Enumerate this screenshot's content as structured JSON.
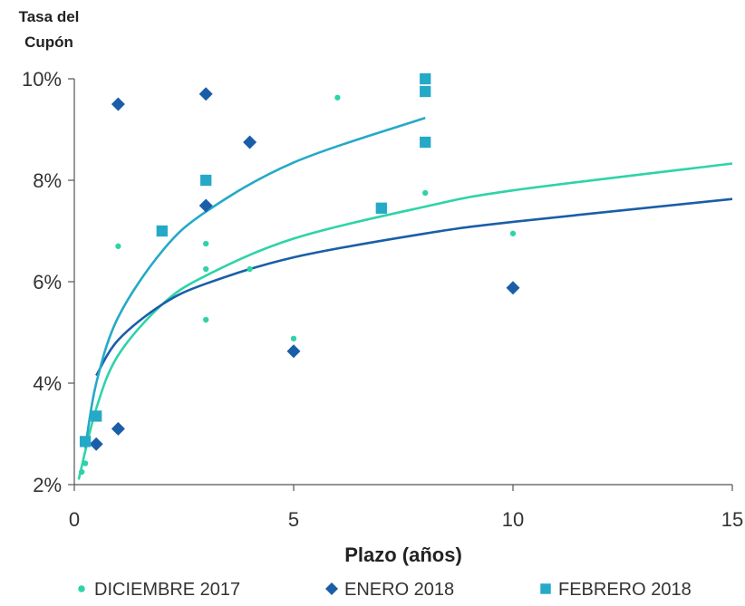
{
  "chart_data": {
    "type": "scatter",
    "ylabel_lines": [
      "Tasa del",
      "Cupón"
    ],
    "xlabel": "Plazo (años)",
    "xlim": [
      0,
      15
    ],
    "ylim": [
      2,
      10
    ],
    "x_ticks": [
      0,
      5,
      10,
      15
    ],
    "x_tick_labels": [
      "0",
      "5",
      "10",
      "15"
    ],
    "y_ticks": [
      2,
      4,
      6,
      8,
      10
    ],
    "y_tick_labels": [
      "2%",
      "4%",
      "6%",
      "8%",
      "10%"
    ],
    "grid": false,
    "legend_position": "bottom",
    "series": [
      {
        "name": "DICIEMBRE 2017",
        "marker": "circle",
        "color": "#2ed3a8",
        "points": [
          [
            0.17,
            2.25
          ],
          [
            0.25,
            2.42
          ],
          [
            1,
            6.7
          ],
          [
            3,
            6.75
          ],
          [
            3,
            6.25
          ],
          [
            3,
            5.25
          ],
          [
            4,
            6.25
          ],
          [
            5,
            4.88
          ],
          [
            6,
            9.63
          ],
          [
            8,
            7.75
          ],
          [
            10,
            6.95
          ]
        ],
        "trend": [
          [
            0.1,
            2.1
          ],
          [
            0.5,
            3.5
          ],
          [
            1,
            4.55
          ],
          [
            2,
            5.55
          ],
          [
            3,
            6.12
          ],
          [
            5,
            6.85
          ],
          [
            8,
            7.48
          ],
          [
            10,
            7.8
          ],
          [
            15,
            8.33
          ]
        ]
      },
      {
        "name": "ENERO 2018",
        "marker": "diamond",
        "color": "#1a5ea8",
        "points": [
          [
            0.5,
            2.8
          ],
          [
            1,
            3.1
          ],
          [
            1,
            9.5
          ],
          [
            3,
            9.7
          ],
          [
            3,
            7.5
          ],
          [
            4,
            8.75
          ],
          [
            5,
            4.63
          ],
          [
            10,
            5.88
          ]
        ],
        "trend": [
          [
            0.5,
            4.15
          ],
          [
            1,
            4.85
          ],
          [
            2,
            5.55
          ],
          [
            3,
            5.96
          ],
          [
            5,
            6.48
          ],
          [
            8,
            6.95
          ],
          [
            10,
            7.18
          ],
          [
            15,
            7.63
          ]
        ]
      },
      {
        "name": "FEBRERO 2018",
        "marker": "square",
        "color": "#25a9c7",
        "points": [
          [
            0.25,
            2.85
          ],
          [
            0.5,
            3.35
          ],
          [
            2,
            7.0
          ],
          [
            3,
            8.0
          ],
          [
            7,
            7.45
          ],
          [
            8,
            8.75
          ],
          [
            8,
            9.75
          ],
          [
            8,
            10.0
          ]
        ],
        "trend": [
          [
            0.25,
            2.72
          ],
          [
            0.5,
            4.0
          ],
          [
            1,
            5.3
          ],
          [
            2,
            6.6
          ],
          [
            3,
            7.38
          ],
          [
            5,
            8.35
          ],
          [
            8,
            9.23
          ]
        ]
      }
    ]
  }
}
